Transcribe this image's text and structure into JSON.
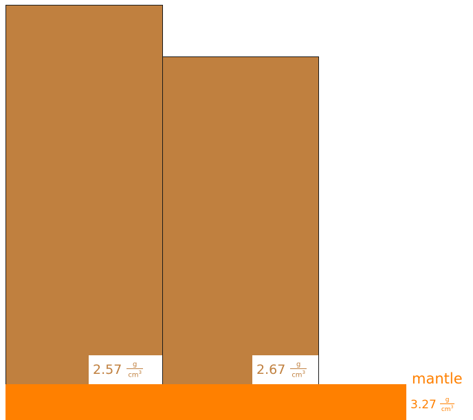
{
  "blocks": [
    {
      "value": "2.57",
      "unit_num": "g",
      "unit_den": "cm",
      "unit_exp": "3"
    },
    {
      "value": "2.67",
      "unit_num": "g",
      "unit_den": "cm",
      "unit_exp": "3"
    }
  ],
  "mantle": {
    "label": "mantle",
    "value": "3.27",
    "unit_num": "g",
    "unit_den": "cm",
    "unit_exp": "3"
  },
  "colors": {
    "crust": "#c0803f",
    "mantle": "#ff8000",
    "outline": "#1a1a1a"
  }
}
